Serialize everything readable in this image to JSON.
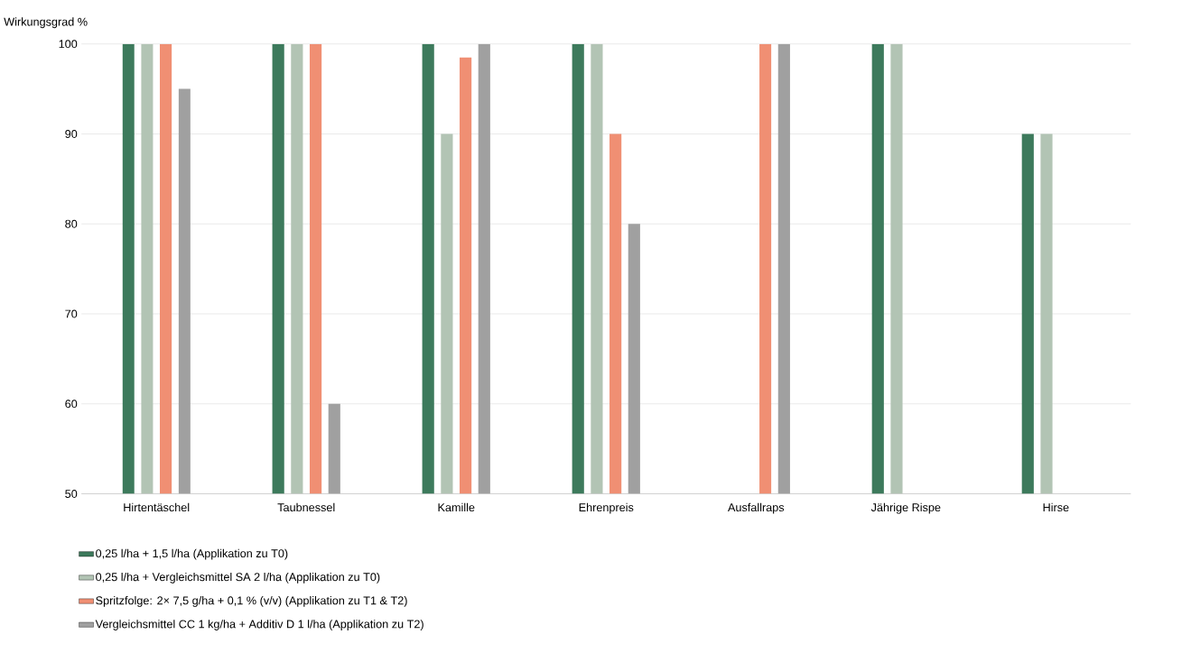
{
  "chart_data": {
    "type": "bar",
    "ylabel": "Wirkungsgrad %",
    "categories": [
      "Hirtentäschel",
      "Taubnessel",
      "Kamille",
      "Ehrenpreis",
      "Ausfallraps",
      "Jährige Rispe",
      "Hirse"
    ],
    "series": [
      {
        "name": "0,25 l/ha + 1,5 l/ha (Applikation zu T0)",
        "color": "#3d7a5c",
        "values": [
          100,
          100,
          100,
          100,
          null,
          100,
          90
        ]
      },
      {
        "name": "0,25 l/ha + Vergleichsmittel SA 2 l/ha (Applikation zu T0)",
        "color": "#b2c4b4",
        "values": [
          100,
          100,
          90,
          100,
          null,
          100,
          90
        ]
      },
      {
        "name": "Spritzfolge: 2× 7,5 g/ha + 0,1 % (v/v) (Applikation zu T1 & T2)",
        "color": "#f08f73",
        "values": [
          100,
          100,
          98.5,
          90,
          100,
          null,
          null
        ]
      },
      {
        "name": "Vergleichsmittel CC 1 kg/ha + Additiv D 1 l/ha (Applikation zu T2)",
        "color": "#a0a0a0",
        "values": [
          95,
          60,
          100,
          80,
          100,
          null,
          null
        ]
      }
    ],
    "ylim": [
      50,
      100
    ],
    "yticks": [
      50,
      60,
      70,
      80,
      90,
      100
    ],
    "grid": "y",
    "legend": "bottom"
  }
}
